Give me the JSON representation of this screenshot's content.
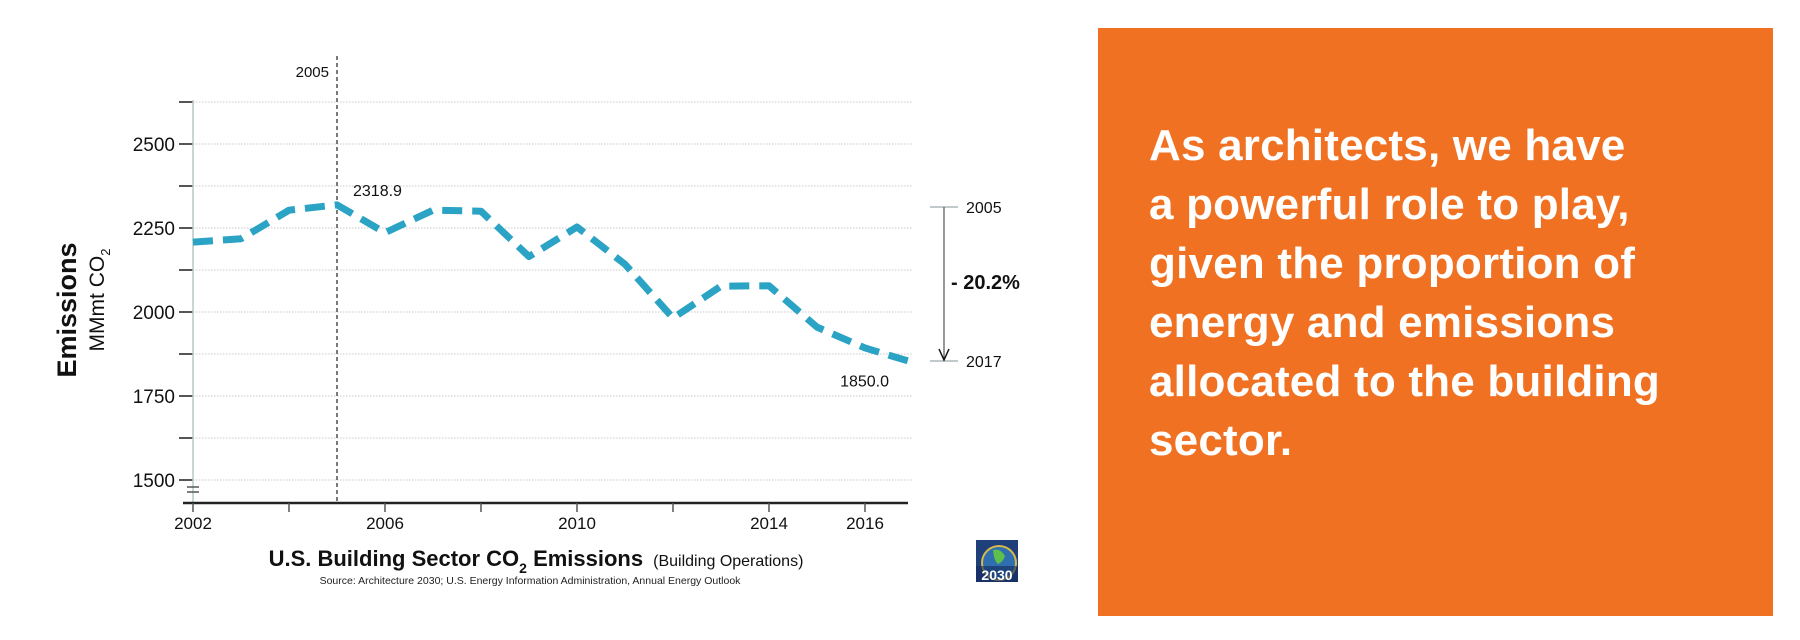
{
  "chart_data": {
    "type": "line",
    "title": "U.S. Building Sector CO2 Emissions",
    "title_parts": {
      "main": "U.S. Building Sector CO",
      "sub": "2",
      "after": " Emissions",
      "paren": "(Building Operations)"
    },
    "source": "Source: Architecture 2030; U.S. Energy Information Administration, Annual Energy Outlook",
    "ylabel": "Emissions",
    "ylabel_unit": {
      "main": "MMmt CO",
      "sub": "2"
    },
    "xlabel": "",
    "x": [
      2002,
      2003,
      2004,
      2005,
      2006,
      2007,
      2008,
      2009,
      2010,
      2011,
      2012,
      2013,
      2014,
      2015,
      2016,
      2017
    ],
    "series": [
      {
        "name": "U.S. Building Sector CO2 Emissions",
        "color": "#2aa3c4",
        "style": "dashed",
        "values": [
          2208,
          2218,
          2303,
          2318.9,
          2236,
          2303,
          2300,
          2165,
          2253,
          2142,
          1982,
          2077,
          2078,
          1955,
          1893,
          1850.0
        ]
      }
    ],
    "xlim": [
      2002,
      2017
    ],
    "ylim": [
      1500,
      2625
    ],
    "x_ticks": [
      2002,
      2004,
      2006,
      2008,
      2010,
      2012,
      2014,
      2016
    ],
    "x_tick_labels": [
      "2002",
      "",
      "2006",
      "",
      "2010",
      "",
      "2014",
      "2016"
    ],
    "y_ticks": [
      1500,
      1625,
      1750,
      1875,
      2000,
      2125,
      2250,
      2375,
      2500,
      2625
    ],
    "y_tick_labels": [
      "1500",
      "",
      "1750",
      "",
      "2000",
      "",
      "2250",
      "",
      "2500",
      ""
    ],
    "grid": true,
    "annotations": {
      "reference_line": {
        "x": 2005,
        "label": "2005"
      },
      "point_labels": [
        {
          "x": 2005,
          "y": 2318.9,
          "text": "2318.9"
        },
        {
          "x": 2017,
          "y": 1850.0,
          "text": "1850.0"
        }
      ],
      "change_bracket": {
        "from_label": "2005",
        "to_label": "2017",
        "from_value": 2318.9,
        "to_value": 1850.0,
        "text": "- 20.2%"
      }
    },
    "axis_break": true
  },
  "logo": {
    "text": "2030",
    "name": "Architecture 2030"
  },
  "panel": {
    "background": "#f07122",
    "lines": [
      "As architects, we have",
      "a powerful role to play,",
      "given the proportion of",
      "energy and emissions",
      "allocated to the building",
      "sector."
    ]
  }
}
